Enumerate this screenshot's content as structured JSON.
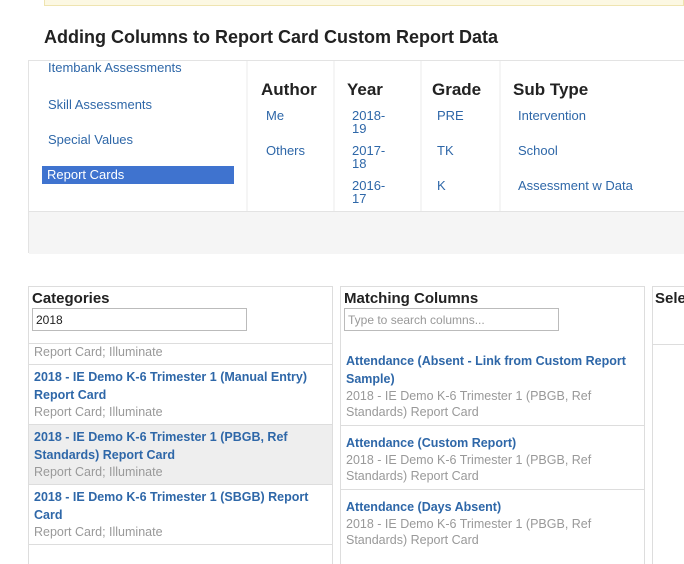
{
  "page": {
    "title": "Adding Columns to Report Card Custom Report Data"
  },
  "types": [
    "Itembank Assessments",
    "Skill Assessments",
    "Special Values",
    "Report Cards"
  ],
  "filters": {
    "author": {
      "label": "Author",
      "options": [
        "Me",
        "Others"
      ]
    },
    "year": {
      "label": "Year",
      "options": [
        [
          "2018-",
          "19"
        ],
        [
          "2017-",
          "18"
        ],
        [
          "2016-",
          "17"
        ]
      ]
    },
    "grade": {
      "label": "Grade",
      "options": [
        "PRE",
        "TK",
        "K"
      ]
    },
    "subtype": {
      "label": "Sub Type",
      "options": [
        "Intervention",
        "School",
        "Assessment w Data"
      ]
    }
  },
  "categories": {
    "title": "Categories",
    "search_value": "2018",
    "cut_item_sub": "Report Card; Illuminate",
    "items": [
      {
        "title": "2018 - IE Demo K-6 Trimester 1 (Manual Entry) Report Card",
        "sub": "Report Card; Illuminate"
      },
      {
        "title": "2018 - IE Demo K-6 Trimester 1 (PBGB, Ref Standards) Report Card",
        "sub": "Report Card; Illuminate"
      },
      {
        "title": "2018 - IE Demo K-6 Trimester 1 (SBGB) Report Card",
        "sub": "Report Card; Illuminate"
      }
    ]
  },
  "matching": {
    "title": "Matching Columns",
    "search_placeholder": "Type to search columns...",
    "items": [
      {
        "title": "Attendance (Absent - Link from Custom Report Sample)",
        "sub": "2018 - IE Demo K-6 Trimester 1 (PBGB, Ref Standards) Report Card"
      },
      {
        "title": "Attendance (Custom Report)",
        "sub": "2018 - IE Demo K-6 Trimester 1 (PBGB, Ref Standards) Report Card"
      },
      {
        "title": "Attendance (Days Absent)",
        "sub": "2018 - IE Demo K-6 Trimester 1 (PBGB, Ref Standards) Report Card"
      }
    ]
  },
  "selected": {
    "title": "Sele"
  }
}
